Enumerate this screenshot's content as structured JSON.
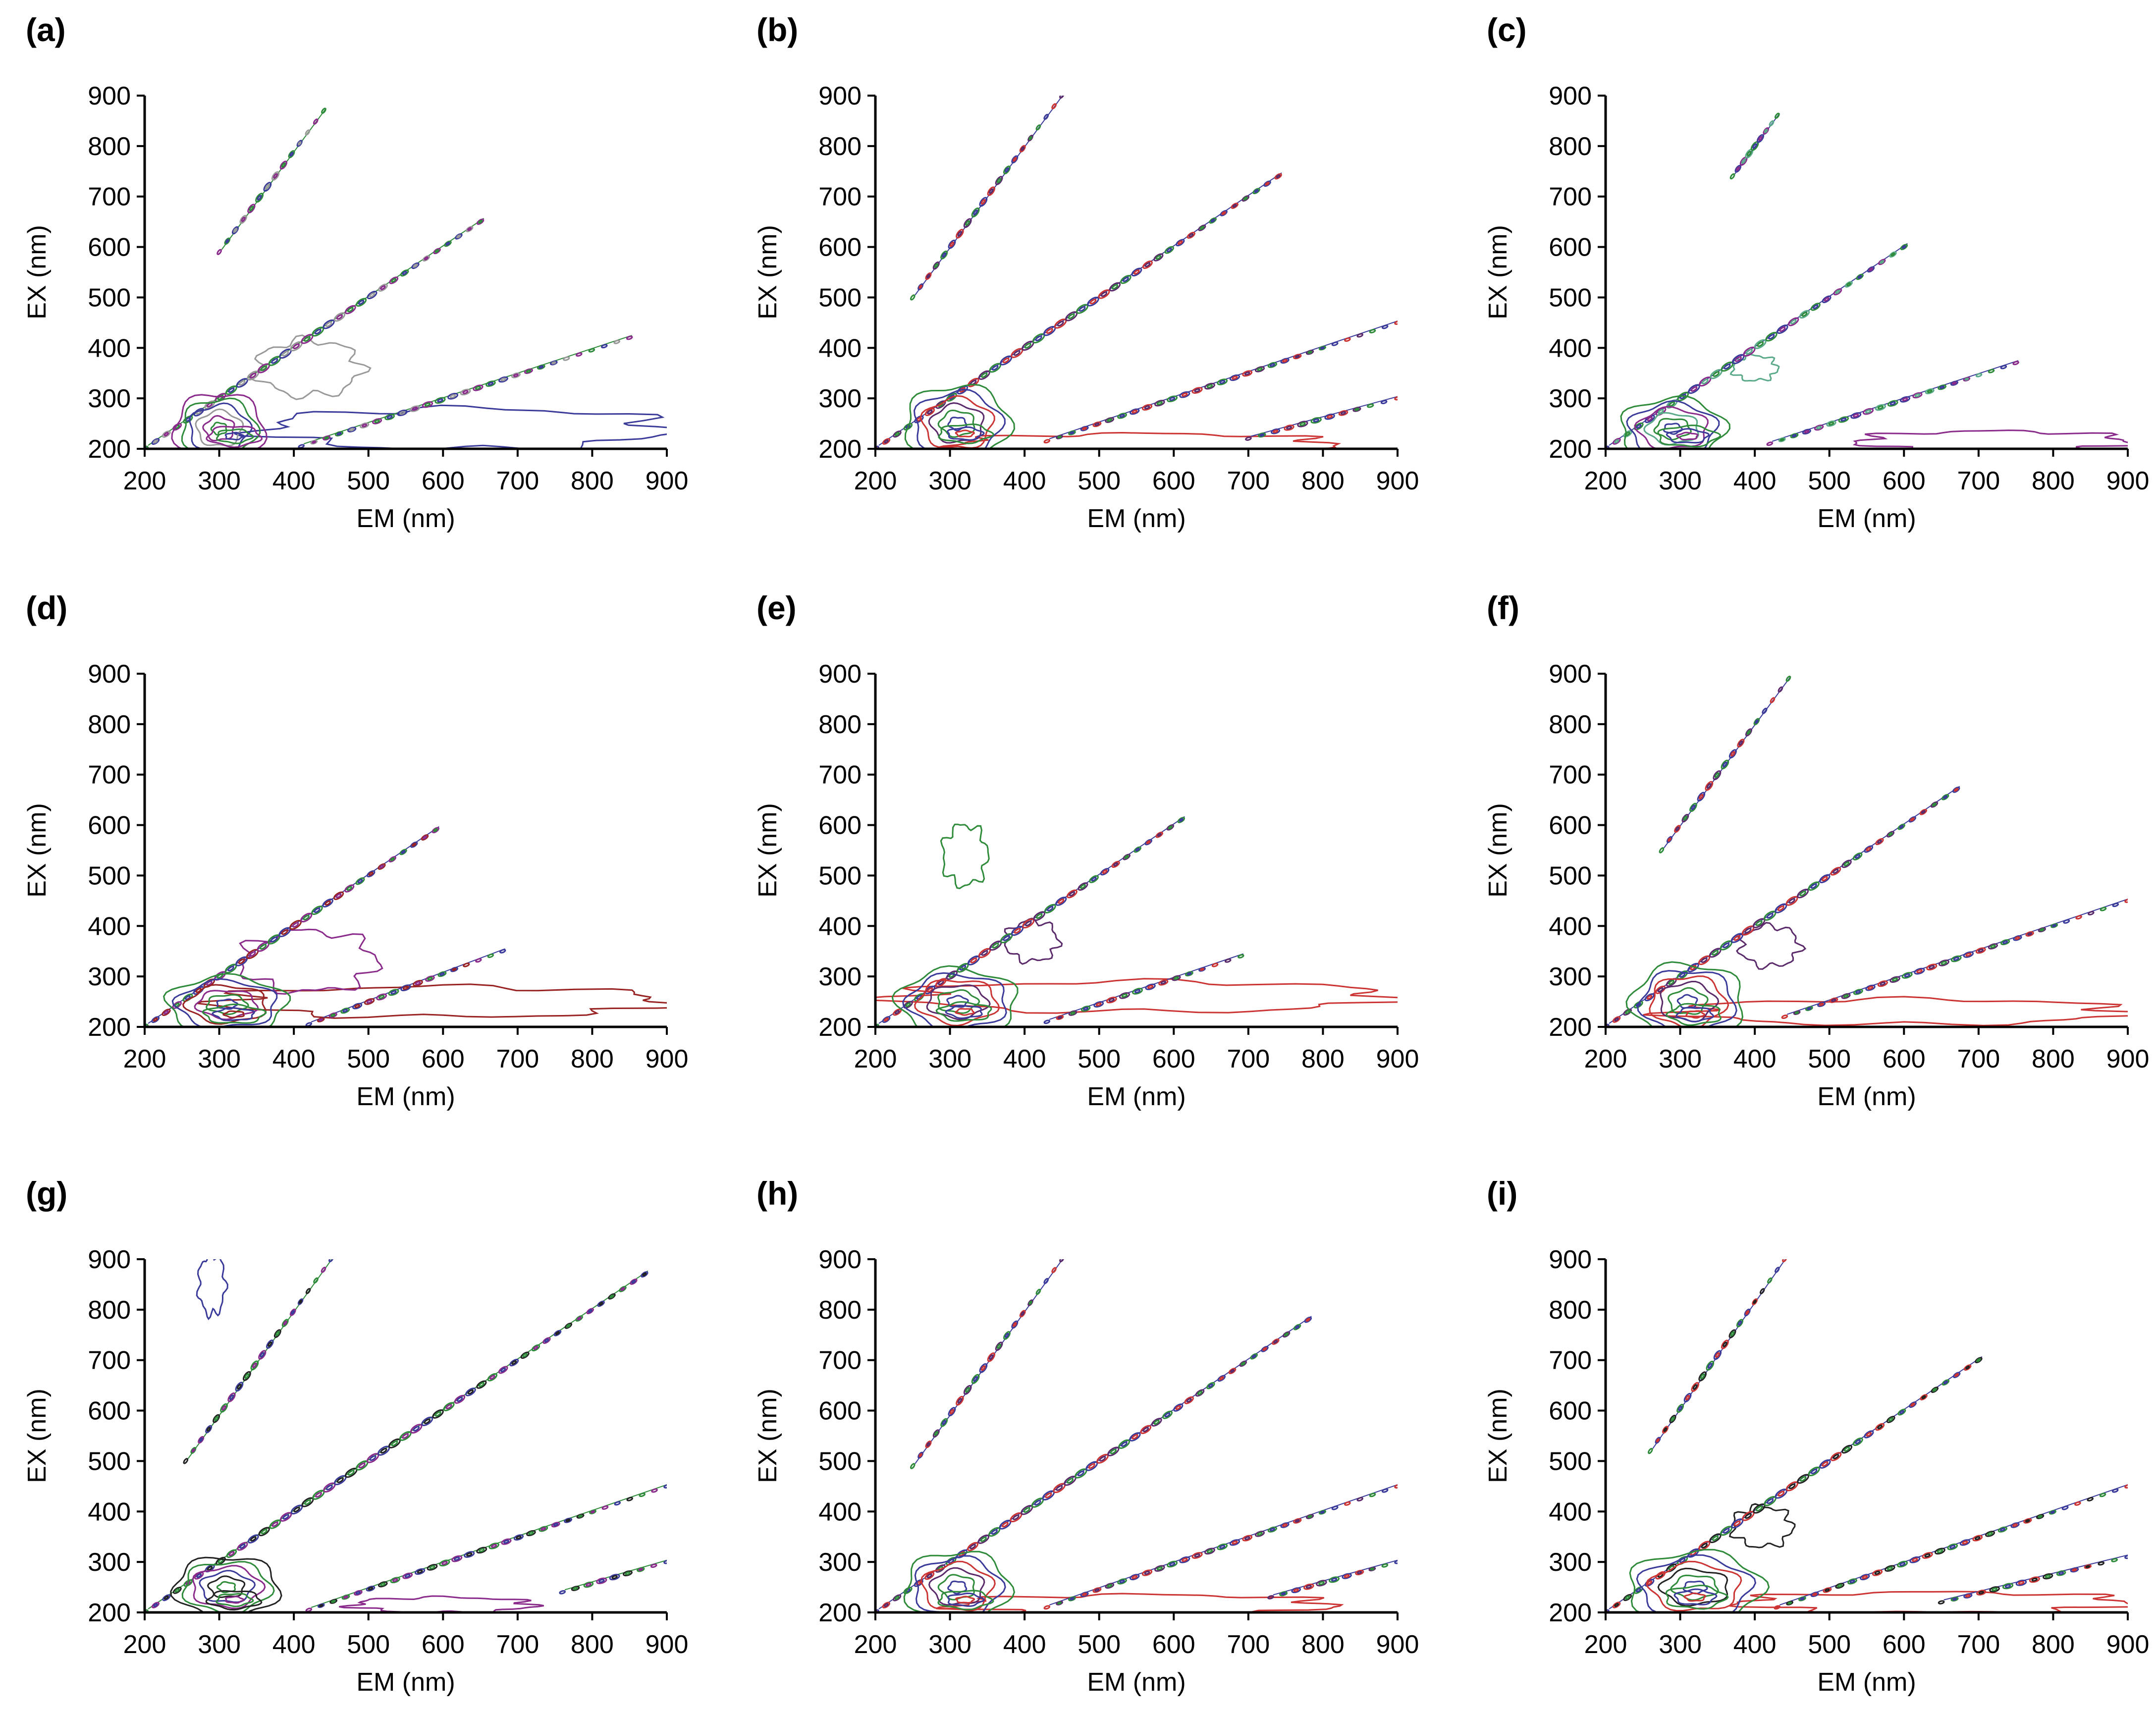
{
  "chart_data": [
    {
      "panel_label": "(a)",
      "type": "contour",
      "xlabel": "EM (nm)",
      "ylabel": "EX (nm)",
      "xlim": [
        200,
        900
      ],
      "ylim": [
        200,
        900
      ],
      "x_ticks": [
        "200",
        "300",
        "400",
        "500",
        "600",
        "700",
        "800",
        "900"
      ],
      "y_ticks": [
        "200",
        "300",
        "400",
        "500",
        "600",
        "700",
        "800",
        "900"
      ],
      "colors": [
        "#8a2a8a",
        "#2e8b3a",
        "#3a3a9a",
        "#999999"
      ],
      "ridges": [
        {
          "name": "second-order",
          "from": [
            300,
            590
          ],
          "to": [
            440,
            870
          ]
        },
        {
          "name": "first-order",
          "from": [
            200,
            200
          ],
          "to": [
            650,
            650
          ]
        },
        {
          "name": "half-order",
          "from": [
            410,
            205
          ],
          "to": [
            850,
            420
          ]
        }
      ],
      "peaks": [
        {
          "em": 300,
          "ex": 240,
          "rx": 60,
          "ry": 70
        },
        {
          "em": 320,
          "ex": 225,
          "rx": 35,
          "ry": 20
        }
      ],
      "background": [
        {
          "em": 630,
          "ex": 240,
          "rx": 270,
          "ry": 40
        },
        {
          "em": 420,
          "ex": 360,
          "rx": 70,
          "ry": 55
        }
      ]
    },
    {
      "panel_label": "(b)",
      "type": "contour",
      "xlabel": "EM (nm)",
      "ylabel": "EX (nm)",
      "xlim": [
        200,
        900
      ],
      "ylim": [
        200,
        900
      ],
      "x_ticks": [
        "200",
        "300",
        "400",
        "500",
        "600",
        "700",
        "800",
        "900"
      ],
      "y_ticks": [
        "200",
        "300",
        "400",
        "500",
        "600",
        "700",
        "800",
        "900"
      ],
      "colors": [
        "#2e8b3a",
        "#3a3a9a",
        "#cc3333",
        "#5a2a6a"
      ],
      "ridges": [
        {
          "name": "second-order",
          "from": [
            250,
            500
          ],
          "to": [
            450,
            900
          ]
        },
        {
          "name": "first-order",
          "from": [
            200,
            200
          ],
          "to": [
            740,
            740
          ]
        },
        {
          "name": "half-order",
          "from": [
            430,
            215
          ],
          "to": [
            900,
            450
          ]
        },
        {
          "name": "third-order",
          "from": [
            700,
            220
          ],
          "to": [
            900,
            300
          ]
        }
      ],
      "peaks": [
        {
          "em": 310,
          "ex": 250,
          "rx": 70,
          "ry": 75
        },
        {
          "em": 320,
          "ex": 230,
          "rx": 35,
          "ry": 18
        }
      ],
      "background": [
        {
          "em": 560,
          "ex": 210,
          "rx": 250,
          "ry": 20
        }
      ]
    },
    {
      "panel_label": "(c)",
      "type": "contour",
      "xlabel": "EM (nm)",
      "ylabel": "EX (nm)",
      "xlim": [
        200,
        900
      ],
      "ylim": [
        200,
        900
      ],
      "x_ticks": [
        "200",
        "300",
        "400",
        "500",
        "600",
        "700",
        "800",
        "900"
      ],
      "y_ticks": [
        "200",
        "300",
        "400",
        "500",
        "600",
        "700",
        "800",
        "900"
      ],
      "colors": [
        "#2e8b3a",
        "#3a3a9a",
        "#8a2a8a",
        "#5aaa8a"
      ],
      "ridges": [
        {
          "name": "second-order",
          "from": [
            370,
            740
          ],
          "to": [
            430,
            860
          ]
        },
        {
          "name": "first-order",
          "from": [
            200,
            200
          ],
          "to": [
            600,
            600
          ]
        },
        {
          "name": "half-order",
          "from": [
            420,
            210
          ],
          "to": [
            750,
            370
          ]
        }
      ],
      "peaks": [
        {
          "em": 290,
          "ex": 240,
          "rx": 70,
          "ry": 60
        },
        {
          "em": 310,
          "ex": 225,
          "rx": 40,
          "ry": 20
        }
      ],
      "background": [
        {
          "em": 720,
          "ex": 215,
          "rx": 180,
          "ry": 20
        },
        {
          "em": 400,
          "ex": 360,
          "rx": 30,
          "ry": 25
        }
      ]
    },
    {
      "panel_label": "(d)",
      "type": "contour",
      "xlabel": "EM (nm)",
      "ylabel": "EX (nm)",
      "xlim": [
        200,
        900
      ],
      "ylim": [
        200,
        900
      ],
      "x_ticks": [
        "200",
        "300",
        "400",
        "500",
        "600",
        "700",
        "800",
        "900"
      ],
      "y_ticks": [
        "200",
        "300",
        "400",
        "500",
        "600",
        "700",
        "800",
        "900"
      ],
      "colors": [
        "#2e8b3a",
        "#3a3a9a",
        "#992222",
        "#8a2a8a"
      ],
      "ridges": [
        {
          "name": "first-order",
          "from": [
            200,
            200
          ],
          "to": [
            590,
            590
          ]
        },
        {
          "name": "half-order",
          "from": [
            420,
            205
          ],
          "to": [
            680,
            350
          ]
        }
      ],
      "peaks": [
        {
          "em": 310,
          "ex": 245,
          "rx": 80,
          "ry": 55
        },
        {
          "em": 320,
          "ex": 225,
          "rx": 40,
          "ry": 18
        }
      ],
      "background": [
        {
          "em": 600,
          "ex": 250,
          "rx": 300,
          "ry": 30
        },
        {
          "em": 420,
          "ex": 330,
          "rx": 90,
          "ry": 60
        }
      ]
    },
    {
      "panel_label": "(e)",
      "type": "contour",
      "xlabel": "EM (nm)",
      "ylabel": "EX (nm)",
      "xlim": [
        200,
        900
      ],
      "ylim": [
        200,
        900
      ],
      "x_ticks": [
        "200",
        "300",
        "400",
        "500",
        "600",
        "700",
        "800",
        "900"
      ],
      "y_ticks": [
        "200",
        "300",
        "400",
        "500",
        "600",
        "700",
        "800",
        "900"
      ],
      "colors": [
        "#2e8b3a",
        "#3a3a9a",
        "#cc3333",
        "#5a2a6a"
      ],
      "ridges": [
        {
          "name": "first-order",
          "from": [
            200,
            200
          ],
          "to": [
            610,
            610
          ]
        },
        {
          "name": "half-order",
          "from": [
            430,
            210
          ],
          "to": [
            690,
            340
          ]
        }
      ],
      "peaks": [
        {
          "em": 310,
          "ex": 250,
          "rx": 80,
          "ry": 65
        },
        {
          "em": 320,
          "ex": 230,
          "rx": 35,
          "ry": 18
        }
      ],
      "background": [
        {
          "em": 560,
          "ex": 260,
          "rx": 330,
          "ry": 30
        },
        {
          "em": 410,
          "ex": 370,
          "rx": 35,
          "ry": 40
        },
        {
          "em": 320,
          "ex": 540,
          "rx": 30,
          "ry": 60
        }
      ]
    },
    {
      "panel_label": "(f)",
      "type": "contour",
      "xlabel": "EM (nm)",
      "ylabel": "EX (nm)",
      "xlim": [
        200,
        900
      ],
      "ylim": [
        200,
        900
      ],
      "x_ticks": [
        "200",
        "300",
        "400",
        "500",
        "600",
        "700",
        "800",
        "900"
      ],
      "y_ticks": [
        "200",
        "300",
        "400",
        "500",
        "600",
        "700",
        "800",
        "900"
      ],
      "colors": [
        "#2e8b3a",
        "#3a3a9a",
        "#cc3333",
        "#5a2a6a"
      ],
      "ridges": [
        {
          "name": "second-order",
          "from": [
            275,
            550
          ],
          "to": [
            445,
            890
          ]
        },
        {
          "name": "first-order",
          "from": [
            200,
            200
          ],
          "to": [
            670,
            670
          ]
        },
        {
          "name": "half-order",
          "from": [
            440,
            220
          ],
          "to": [
            900,
            450
          ]
        }
      ],
      "peaks": [
        {
          "em": 310,
          "ex": 250,
          "rx": 75,
          "ry": 75
        },
        {
          "em": 320,
          "ex": 225,
          "rx": 35,
          "ry": 20
        }
      ],
      "background": [
        {
          "em": 600,
          "ex": 230,
          "rx": 300,
          "ry": 25
        },
        {
          "em": 420,
          "ex": 360,
          "rx": 40,
          "ry": 40
        }
      ]
    },
    {
      "panel_label": "(g)",
      "type": "contour",
      "xlabel": "EM (nm)",
      "ylabel": "EX (nm)",
      "xlim": [
        200,
        900
      ],
      "ylim": [
        200,
        900
      ],
      "x_ticks": [
        "200",
        "300",
        "400",
        "500",
        "600",
        "700",
        "800",
        "900"
      ],
      "y_ticks": [
        "200",
        "300",
        "400",
        "500",
        "600",
        "700",
        "800",
        "900"
      ],
      "colors": [
        "#222222",
        "#2e8b3a",
        "#8a2a8a",
        "#3a3a9a"
      ],
      "ridges": [
        {
          "name": "second-order",
          "from": [
            255,
            500
          ],
          "to": [
            450,
            900
          ]
        },
        {
          "name": "first-order",
          "from": [
            200,
            200
          ],
          "to": [
            870,
            870
          ]
        },
        {
          "name": "half-order",
          "from": [
            420,
            205
          ],
          "to": [
            900,
            450
          ]
        },
        {
          "name": "third-order",
          "from": [
            760,
            240
          ],
          "to": [
            900,
            300
          ]
        }
      ],
      "peaks": [
        {
          "em": 310,
          "ex": 250,
          "rx": 70,
          "ry": 60
        },
        {
          "em": 320,
          "ex": 225,
          "rx": 35,
          "ry": 18
        }
      ],
      "background": [
        {
          "em": 600,
          "ex": 215,
          "rx": 120,
          "ry": 15
        },
        {
          "em": 290,
          "ex": 850,
          "rx": 18,
          "ry": 60
        }
      ]
    },
    {
      "panel_label": "(h)",
      "type": "contour",
      "xlabel": "EM (nm)",
      "ylabel": "EX (nm)",
      "xlim": [
        200,
        900
      ],
      "ylim": [
        200,
        900
      ],
      "x_ticks": [
        "200",
        "300",
        "400",
        "500",
        "600",
        "700",
        "800",
        "900"
      ],
      "y_ticks": [
        "200",
        "300",
        "400",
        "500",
        "600",
        "700",
        "800",
        "900"
      ],
      "colors": [
        "#2e8b3a",
        "#3a3a9a",
        "#cc3333",
        "#5a2a6a"
      ],
      "ridges": [
        {
          "name": "second-order",
          "from": [
            250,
            490
          ],
          "to": [
            450,
            900
          ]
        },
        {
          "name": "first-order",
          "from": [
            200,
            200
          ],
          "to": [
            780,
            780
          ]
        },
        {
          "name": "half-order",
          "from": [
            430,
            210
          ],
          "to": [
            900,
            450
          ]
        },
        {
          "name": "third-order",
          "from": [
            730,
            230
          ],
          "to": [
            900,
            300
          ]
        }
      ],
      "peaks": [
        {
          "em": 310,
          "ex": 250,
          "rx": 70,
          "ry": 70
        },
        {
          "em": 320,
          "ex": 225,
          "rx": 35,
          "ry": 18
        }
      ],
      "background": [
        {
          "em": 560,
          "ex": 215,
          "rx": 250,
          "ry": 20
        }
      ]
    },
    {
      "panel_label": "(i)",
      "type": "contour",
      "xlabel": "EM (nm)",
      "ylabel": "EX (nm)",
      "xlim": [
        200,
        900
      ],
      "ylim": [
        200,
        900
      ],
      "x_ticks": [
        "200",
        "300",
        "400",
        "500",
        "600",
        "700",
        "800",
        "900"
      ],
      "y_ticks": [
        "200",
        "300",
        "400",
        "500",
        "600",
        "700",
        "800",
        "900"
      ],
      "colors": [
        "#2e8b3a",
        "#3a3a9a",
        "#cc3333",
        "#222222"
      ],
      "ridges": [
        {
          "name": "second-order",
          "from": [
            260,
            520
          ],
          "to": [
            440,
            900
          ]
        },
        {
          "name": "first-order",
          "from": [
            200,
            200
          ],
          "to": [
            700,
            700
          ]
        },
        {
          "name": "half-order",
          "from": [
            430,
            210
          ],
          "to": [
            900,
            450
          ]
        },
        {
          "name": "third-order",
          "from": [
            650,
            220
          ],
          "to": [
            900,
            310
          ]
        }
      ],
      "peaks": [
        {
          "em": 320,
          "ex": 250,
          "rx": 90,
          "ry": 70
        },
        {
          "em": 320,
          "ex": 230,
          "rx": 40,
          "ry": 22
        }
      ],
      "background": [
        {
          "em": 640,
          "ex": 220,
          "rx": 260,
          "ry": 20
        },
        {
          "em": 410,
          "ex": 370,
          "rx": 40,
          "ry": 40
        }
      ]
    }
  ]
}
